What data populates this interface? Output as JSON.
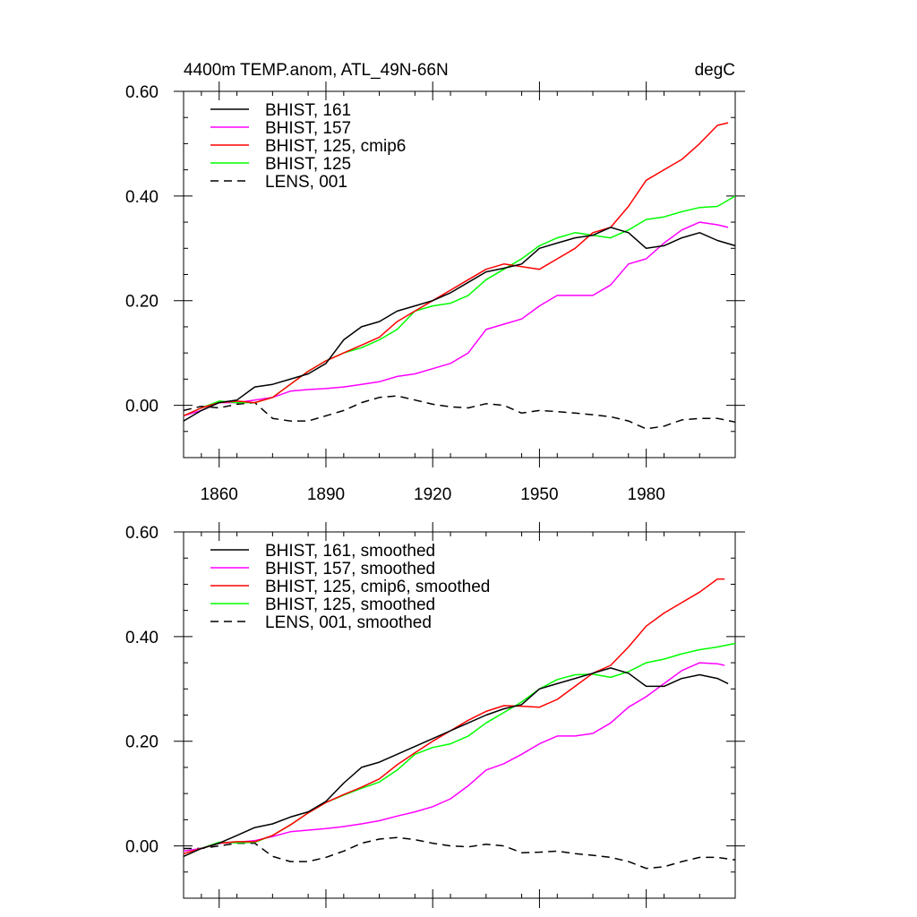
{
  "chart_data": [
    {
      "type": "line",
      "title": "4400m TEMP.anom, ATL_49N-66N",
      "units": "degC",
      "xlim": [
        1850,
        2005
      ],
      "ylim": [
        -0.1,
        0.6
      ],
      "yticks": [
        0.0,
        0.2,
        0.4,
        0.6
      ],
      "ytick_labels": [
        "0.00",
        "0.20",
        "0.40",
        "0.60"
      ],
      "xticks": [
        1860,
        1890,
        1920,
        1950,
        1980
      ],
      "xtick_labels": [
        "1860",
        "1890",
        "1920",
        "1950",
        "1980"
      ],
      "legend_position": "top-left",
      "series": [
        {
          "name": "BHIST, 161",
          "color": "#000000",
          "dash": "solid",
          "x": [
            1850,
            1855,
            1860,
            1865,
            1870,
            1875,
            1880,
            1885,
            1890,
            1895,
            1900,
            1905,
            1910,
            1915,
            1920,
            1925,
            1930,
            1935,
            1940,
            1945,
            1950,
            1955,
            1960,
            1965,
            1970,
            1975,
            1980,
            1985,
            1990,
            1995,
            2000,
            2005
          ],
          "y": [
            -0.03,
            -0.01,
            0.005,
            0.01,
            0.035,
            0.04,
            0.05,
            0.06,
            0.08,
            0.125,
            0.15,
            0.16,
            0.18,
            0.19,
            0.2,
            0.215,
            0.235,
            0.255,
            0.262,
            0.27,
            0.3,
            0.31,
            0.32,
            0.325,
            0.34,
            0.33,
            0.3,
            0.305,
            0.32,
            0.33,
            0.315,
            0.305
          ]
        },
        {
          "name": "BHIST, 157",
          "color": "#ff00ff",
          "dash": "solid",
          "x": [
            1850,
            1855,
            1860,
            1865,
            1870,
            1875,
            1880,
            1885,
            1890,
            1895,
            1900,
            1905,
            1910,
            1915,
            1920,
            1925,
            1930,
            1935,
            1940,
            1945,
            1950,
            1955,
            1960,
            1965,
            1970,
            1975,
            1980,
            1985,
            1990,
            1995,
            2000,
            2003
          ],
          "y": [
            -0.02,
            -0.01,
            0.005,
            0.005,
            0.01,
            0.015,
            0.027,
            0.03,
            0.032,
            0.035,
            0.04,
            0.045,
            0.055,
            0.06,
            0.07,
            0.08,
            0.1,
            0.145,
            0.155,
            0.165,
            0.19,
            0.21,
            0.21,
            0.21,
            0.23,
            0.27,
            0.28,
            0.31,
            0.335,
            0.35,
            0.345,
            0.34
          ]
        },
        {
          "name": "BHIST, 125, cmip6",
          "color": "#ff0000",
          "dash": "solid",
          "x": [
            1850,
            1855,
            1860,
            1865,
            1870,
            1875,
            1880,
            1885,
            1890,
            1895,
            1900,
            1905,
            1910,
            1915,
            1920,
            1925,
            1930,
            1935,
            1940,
            1945,
            1950,
            1955,
            1960,
            1965,
            1970,
            1975,
            1980,
            1985,
            1990,
            1995,
            2000,
            2003
          ],
          "y": [
            -0.02,
            -0.005,
            0.005,
            0.008,
            0.005,
            0.015,
            0.04,
            0.065,
            0.085,
            0.1,
            0.115,
            0.13,
            0.16,
            0.18,
            0.2,
            0.22,
            0.24,
            0.26,
            0.27,
            0.265,
            0.26,
            0.28,
            0.3,
            0.33,
            0.34,
            0.38,
            0.43,
            0.45,
            0.47,
            0.5,
            0.535,
            0.54
          ]
        },
        {
          "name": "BHIST, 125",
          "color": "#00ff00",
          "dash": "solid",
          "x": [
            1850,
            1855,
            1860,
            1865,
            1870,
            1875,
            1880,
            1885,
            1890,
            1895,
            1900,
            1905,
            1910,
            1915,
            1920,
            1925,
            1930,
            1935,
            1940,
            1945,
            1950,
            1955,
            1960,
            1965,
            1970,
            1975,
            1980,
            1985,
            1990,
            1995,
            2000,
            2005
          ],
          "y": [
            -0.02,
            -0.005,
            0.008,
            0.005,
            0.005,
            0.015,
            0.04,
            0.065,
            0.085,
            0.1,
            0.11,
            0.125,
            0.145,
            0.18,
            0.19,
            0.195,
            0.21,
            0.24,
            0.26,
            0.28,
            0.305,
            0.32,
            0.33,
            0.325,
            0.32,
            0.335,
            0.355,
            0.36,
            0.37,
            0.378,
            0.38,
            0.4
          ]
        },
        {
          "name": "LENS, 001",
          "color": "#000000",
          "dash": "dashed",
          "x": [
            1850,
            1855,
            1860,
            1865,
            1870,
            1875,
            1880,
            1885,
            1890,
            1895,
            1900,
            1905,
            1910,
            1915,
            1920,
            1925,
            1930,
            1935,
            1940,
            1945,
            1950,
            1955,
            1960,
            1965,
            1970,
            1975,
            1980,
            1985,
            1990,
            1995,
            2000,
            2005
          ],
          "y": [
            -0.01,
            -0.002,
            -0.005,
            0.002,
            0.005,
            -0.025,
            -0.03,
            -0.03,
            -0.02,
            -0.01,
            0.005,
            0.015,
            0.018,
            0.01,
            0.002,
            -0.003,
            -0.005,
            0.003,
            0.0,
            -0.015,
            -0.01,
            -0.012,
            -0.015,
            -0.018,
            -0.022,
            -0.03,
            -0.045,
            -0.04,
            -0.028,
            -0.025,
            -0.025,
            -0.032
          ]
        }
      ]
    },
    {
      "type": "line",
      "xlim": [
        1850,
        2005
      ],
      "ylim": [
        -0.1,
        0.6
      ],
      "yticks": [
        0.0,
        0.2,
        0.4,
        0.6
      ],
      "ytick_labels": [
        "0.00",
        "0.20",
        "0.40",
        "0.60"
      ],
      "xticks": [
        1860,
        1890,
        1920,
        1950,
        1980
      ],
      "legend_position": "top-left",
      "series": [
        {
          "name": "BHIST, 161, smoothed",
          "color": "#000000",
          "dash": "solid",
          "x": [
            1850,
            1855,
            1860,
            1865,
            1870,
            1875,
            1880,
            1885,
            1890,
            1895,
            1900,
            1905,
            1910,
            1915,
            1920,
            1925,
            1930,
            1935,
            1940,
            1945,
            1950,
            1955,
            1960,
            1965,
            1970,
            1975,
            1980,
            1985,
            1990,
            1995,
            2000,
            2003
          ],
          "y": [
            -0.02,
            -0.005,
            0.005,
            0.02,
            0.035,
            0.042,
            0.055,
            0.065,
            0.085,
            0.12,
            0.15,
            0.16,
            0.175,
            0.19,
            0.205,
            0.22,
            0.235,
            0.25,
            0.262,
            0.27,
            0.3,
            0.31,
            0.32,
            0.33,
            0.34,
            0.33,
            0.305,
            0.305,
            0.32,
            0.327,
            0.32,
            0.31
          ]
        },
        {
          "name": "BHIST, 157, smoothed",
          "color": "#ff00ff",
          "dash": "solid",
          "x": [
            1850,
            1855,
            1860,
            1865,
            1870,
            1875,
            1880,
            1885,
            1890,
            1895,
            1900,
            1905,
            1910,
            1915,
            1920,
            1925,
            1930,
            1935,
            1940,
            1945,
            1950,
            1955,
            1960,
            1965,
            1970,
            1975,
            1980,
            1985,
            1990,
            1995,
            2000,
            2002
          ],
          "y": [
            -0.01,
            -0.005,
            0.005,
            0.007,
            0.01,
            0.018,
            0.027,
            0.03,
            0.033,
            0.037,
            0.042,
            0.048,
            0.057,
            0.065,
            0.075,
            0.09,
            0.115,
            0.145,
            0.157,
            0.175,
            0.195,
            0.21,
            0.21,
            0.215,
            0.235,
            0.265,
            0.285,
            0.31,
            0.335,
            0.35,
            0.348,
            0.345
          ]
        },
        {
          "name": "BHIST, 125, cmip6, smoothed",
          "color": "#ff0000",
          "dash": "solid",
          "x": [
            1850,
            1855,
            1860,
            1865,
            1870,
            1875,
            1880,
            1885,
            1890,
            1895,
            1900,
            1905,
            1910,
            1915,
            1920,
            1925,
            1930,
            1935,
            1940,
            1945,
            1950,
            1955,
            1960,
            1965,
            1970,
            1975,
            1980,
            1985,
            1990,
            1995,
            2000,
            2002
          ],
          "y": [
            -0.015,
            -0.005,
            0.005,
            0.008,
            0.008,
            0.02,
            0.04,
            0.063,
            0.083,
            0.098,
            0.112,
            0.128,
            0.155,
            0.178,
            0.2,
            0.22,
            0.24,
            0.257,
            0.268,
            0.267,
            0.265,
            0.28,
            0.305,
            0.33,
            0.345,
            0.38,
            0.42,
            0.445,
            0.465,
            0.485,
            0.51,
            0.51
          ]
        },
        {
          "name": "BHIST, 125, smoothed",
          "color": "#00ff00",
          "dash": "solid",
          "x": [
            1850,
            1855,
            1860,
            1865,
            1870,
            1875,
            1880,
            1885,
            1890,
            1895,
            1900,
            1905,
            1910,
            1915,
            1920,
            1925,
            1930,
            1935,
            1940,
            1945,
            1950,
            1955,
            1960,
            1965,
            1970,
            1975,
            1980,
            1985,
            1990,
            1995,
            2000,
            2005
          ],
          "y": [
            -0.015,
            -0.005,
            0.007,
            0.006,
            0.007,
            0.02,
            0.04,
            0.063,
            0.083,
            0.097,
            0.11,
            0.122,
            0.145,
            0.175,
            0.188,
            0.195,
            0.21,
            0.235,
            0.255,
            0.275,
            0.3,
            0.318,
            0.327,
            0.328,
            0.322,
            0.333,
            0.35,
            0.357,
            0.367,
            0.375,
            0.38,
            0.387
          ]
        },
        {
          "name": "LENS, 001, smoothed",
          "color": "#000000",
          "dash": "dashed",
          "x": [
            1850,
            1855,
            1860,
            1865,
            1870,
            1875,
            1880,
            1885,
            1890,
            1895,
            1900,
            1905,
            1910,
            1915,
            1920,
            1925,
            1930,
            1935,
            1940,
            1945,
            1950,
            1955,
            1960,
            1965,
            1970,
            1975,
            1980,
            1985,
            1990,
            1995,
            2000,
            2005
          ],
          "y": [
            -0.005,
            -0.005,
            0.0,
            0.005,
            0.005,
            -0.02,
            -0.03,
            -0.03,
            -0.022,
            -0.01,
            0.005,
            0.013,
            0.016,
            0.012,
            0.005,
            0.0,
            -0.002,
            0.003,
            0.0,
            -0.013,
            -0.012,
            -0.01,
            -0.015,
            -0.018,
            -0.022,
            -0.03,
            -0.043,
            -0.04,
            -0.03,
            -0.022,
            -0.022,
            -0.027
          ]
        }
      ]
    }
  ]
}
